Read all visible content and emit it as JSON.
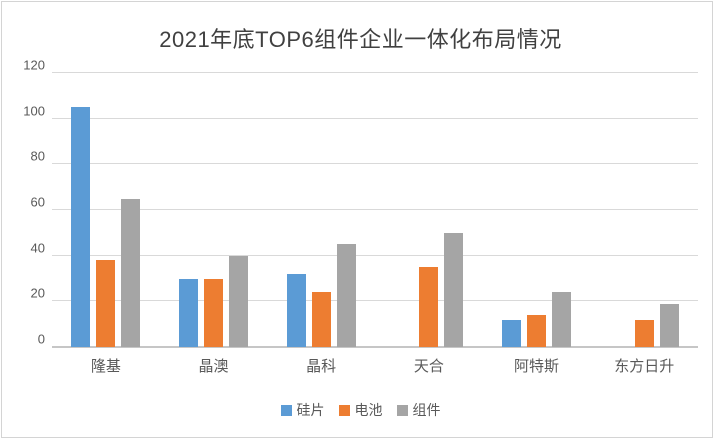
{
  "chart_data": {
    "type": "bar",
    "title": "2021年底TOP6组件企业一体化布局情况",
    "categories": [
      "隆基",
      "晶澳",
      "晶科",
      "天合",
      "阿特斯",
      "东方日升"
    ],
    "series": [
      {
        "name": "硅片",
        "color": "#5B9BD5",
        "values": [
          105,
          30,
          32,
          0,
          12,
          0
        ]
      },
      {
        "name": "电池",
        "color": "#ED7D31",
        "values": [
          38,
          30,
          24,
          35,
          14,
          12
        ]
      },
      {
        "name": "组件",
        "color": "#A5A5A5",
        "values": [
          65,
          40,
          45,
          50,
          24,
          19
        ]
      }
    ],
    "xlabel": "",
    "ylabel": "",
    "ylim": [
      0,
      120
    ],
    "ystep": 20,
    "yticks": [
      "0",
      "20",
      "40",
      "60",
      "80",
      "100",
      "120"
    ],
    "grid": true,
    "legend_position": "bottom"
  },
  "styles": {
    "title_color": "#404040",
    "axis_label_color": "#595959",
    "gridline_color": "#D9D9D9",
    "baseline_color": "#C6C6C6",
    "frame_border_color": "#D4D4D4",
    "background": "#FFFFFF"
  }
}
